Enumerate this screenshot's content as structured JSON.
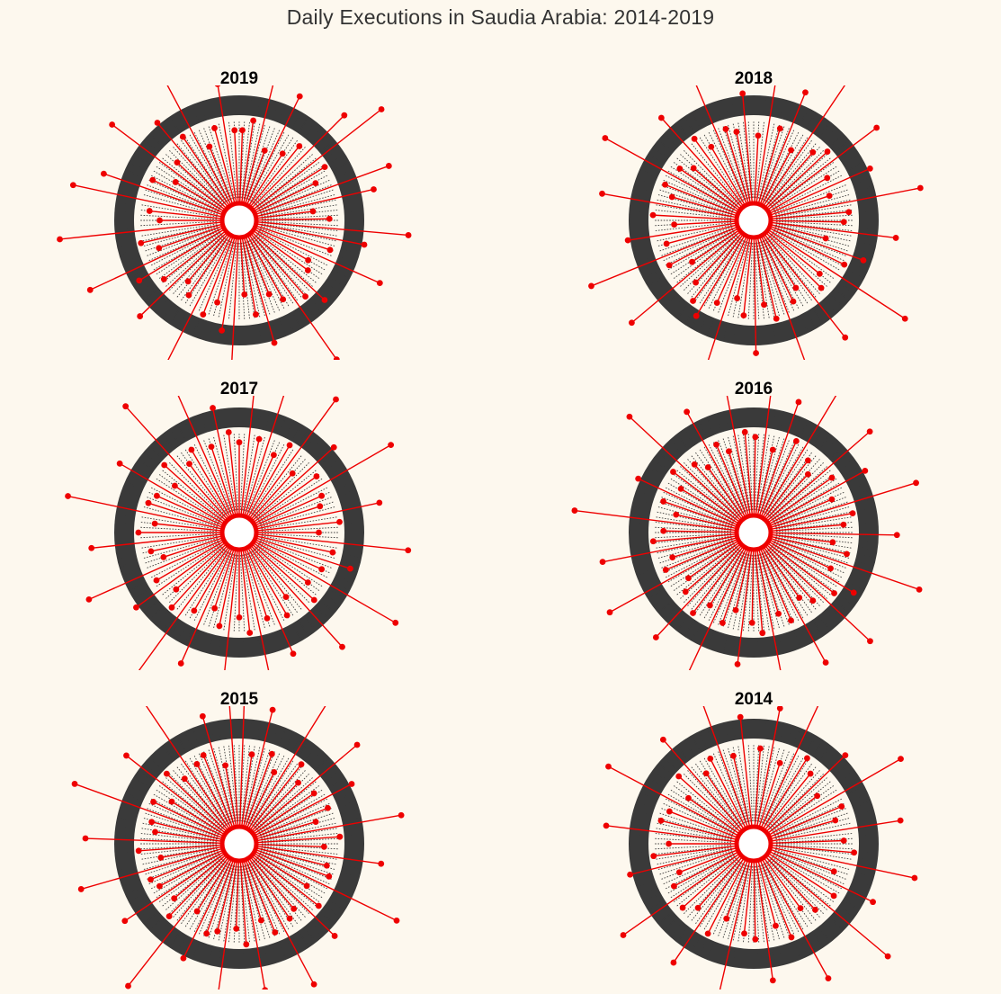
{
  "title": "Daily Executions in Saudia Arabia: 2014-2019",
  "colors": {
    "background": "#fdf8ee",
    "spike": "#ee0000",
    "ring": "#3a3a3a",
    "dots": "#222222"
  },
  "chart_data": [
    {
      "type": "radial-lollipop",
      "title": "2019",
      "angles_deg": [
        2,
        8,
        14,
        20,
        26,
        33,
        39,
        45,
        52,
        58,
        64,
        70,
        77,
        83,
        89,
        95,
        101,
        108,
        114,
        120,
        126,
        133,
        139,
        145,
        151,
        158,
        164,
        170,
        176,
        183,
        189,
        195,
        201,
        207,
        214,
        220,
        226,
        232,
        239,
        245,
        251,
        257,
        264,
        270,
        276,
        282,
        289,
        295,
        301,
        307,
        313,
        320,
        326,
        332,
        338,
        345,
        351,
        357
      ],
      "lengths": [
        0.85,
        0.95,
        1.6,
        0.7,
        1.3,
        0.75,
        0.9,
        1.4,
        1.7,
        0.95,
        0.8,
        1.5,
        1.3,
        0.7,
        0.85,
        1.6,
        1.2,
        0.9,
        1.45,
        0.75,
        0.8,
        1.1,
        0.95,
        1.6,
        0.85,
        0.75,
        1.2,
        0.9,
        0.7,
        1.55,
        1.05,
        0.8,
        0.95,
        1.7,
        0.85,
        0.75,
        1.3,
        0.9,
        1.1,
        1.55,
        0.8,
        0.95,
        1.7,
        0.75,
        0.85,
        1.6,
        1.35,
        0.9,
        0.7,
        1.5,
        0.8,
        1.2,
        0.95,
        1.65,
        0.75,
        0.9,
        1.3,
        0.85
      ]
    },
    {
      "type": "radial-lollipop",
      "title": "2018",
      "angles_deg": [
        3,
        9,
        16,
        22,
        28,
        34,
        41,
        47,
        53,
        60,
        66,
        72,
        79,
        85,
        91,
        97,
        104,
        110,
        116,
        123,
        129,
        135,
        142,
        148,
        154,
        160,
        167,
        173,
        179,
        186,
        192,
        198,
        204,
        211,
        217,
        223,
        230,
        236,
        242,
        248,
        255,
        261,
        267,
        273,
        280,
        286,
        292,
        299,
        305,
        311,
        318,
        324,
        330,
        337,
        343,
        349,
        355
      ],
      "lengths": [
        0.8,
        1.6,
        0.9,
        1.3,
        0.75,
        1.7,
        0.85,
        0.95,
        1.45,
        0.8,
        1.2,
        0.75,
        1.6,
        0.9,
        0.85,
        1.35,
        0.7,
        1.1,
        0.95,
        1.7,
        0.8,
        0.9,
        1.4,
        0.75,
        0.85,
        1.55,
        0.95,
        0.8,
        1.25,
        0.9,
        0.75,
        1.6,
        0.85,
        1.05,
        0.95,
        0.8,
        1.5,
        0.7,
        0.9,
        1.65,
        0.85,
        1.2,
        0.75,
        0.95,
        1.45,
        0.8,
        0.9,
        1.6,
        0.85,
        0.75,
        1.3,
        0.95,
        0.8,
        1.7,
        0.9,
        0.85,
        1.2
      ]
    },
    {
      "type": "radial-lollipop",
      "title": "2017",
      "angles_deg": [
        0,
        6,
        12,
        18,
        24,
        30,
        36,
        42,
        48,
        54,
        60,
        66,
        72,
        78,
        84,
        90,
        96,
        102,
        108,
        114,
        120,
        126,
        132,
        138,
        144,
        150,
        156,
        162,
        168,
        174,
        180,
        186,
        192,
        198,
        204,
        210,
        216,
        222,
        228,
        234,
        240,
        246,
        252,
        258,
        264,
        270,
        276,
        282,
        288,
        294,
        300,
        306,
        312,
        318,
        324,
        330,
        336,
        342,
        348,
        354
      ],
      "lengths": [
        0.85,
        1.4,
        0.9,
        1.7,
        0.8,
        0.95,
        1.55,
        0.75,
        1.2,
        0.9,
        1.65,
        0.85,
        0.8,
        1.35,
        0.95,
        0.75,
        1.6,
        0.9,
        1.1,
        0.85,
        1.7,
        0.8,
        0.95,
        1.45,
        0.75,
        0.9,
        1.25,
        0.85,
        1.6,
        0.95,
        0.8,
        1.5,
        0.9,
        0.75,
        1.35,
        0.85,
        1.7,
        0.95,
        0.8,
        1.2,
        0.9,
        1.55,
        0.75,
        0.85,
        1.4,
        0.95,
        0.8,
        1.65,
        0.9,
        0.85,
        1.3,
        0.75,
        0.95,
        1.6,
        0.8,
        0.9,
        1.45,
        0.85,
        1.2,
        0.95
      ]
    },
    {
      "type": "radial-lollipop",
      "title": "2016",
      "angles_deg": [
        1,
        7,
        13,
        19,
        25,
        31,
        37,
        43,
        49,
        55,
        61,
        67,
        73,
        79,
        85,
        91,
        97,
        103,
        109,
        115,
        121,
        127,
        133,
        139,
        145,
        151,
        157,
        163,
        169,
        175,
        181,
        187,
        193,
        199,
        205,
        211,
        217,
        223,
        229,
        235,
        241,
        247,
        253,
        259,
        265,
        271,
        277,
        283,
        289,
        295,
        301,
        307,
        313,
        319,
        325,
        331,
        337,
        343,
        349,
        355
      ],
      "lengths": [
        0.9,
        1.55,
        0.8,
        1.3,
        0.95,
        1.7,
        0.85,
        0.75,
        1.45,
        0.9,
        1.2,
        0.8,
        1.6,
        0.95,
        0.85,
        1.35,
        0.75,
        0.9,
        1.65,
        0.8,
        1.1,
        0.95,
        1.5,
        0.85,
        0.75,
        1.4,
        0.9,
        0.8,
        1.7,
        0.95,
        0.85,
        1.25,
        0.75,
        0.9,
        1.6,
        0.8,
        0.95,
        1.35,
        0.85,
        0.75,
        1.55,
        0.9,
        0.8,
        1.45,
        0.95,
        0.85,
        1.7,
        0.75,
        0.9,
        1.2,
        0.8,
        0.95,
        1.6,
        0.85,
        0.75,
        1.3,
        0.9,
        0.8,
        1.5,
        0.95
      ]
    },
    {
      "type": "radial-lollipop",
      "title": "2015",
      "angles_deg": [
        2,
        8,
        14,
        20,
        26,
        32,
        38,
        44,
        50,
        56,
        62,
        68,
        74,
        80,
        86,
        92,
        98,
        104,
        110,
        116,
        122,
        128,
        134,
        140,
        146,
        152,
        158,
        164,
        170,
        176,
        182,
        188,
        194,
        200,
        206,
        212,
        218,
        224,
        230,
        236,
        242,
        248,
        254,
        260,
        266,
        272,
        278,
        284,
        290,
        296,
        302,
        308,
        314,
        320,
        326,
        332,
        338,
        344,
        350,
        356
      ],
      "lengths": [
        1.6,
        0.85,
        1.3,
        0.9,
        0.75,
        1.7,
        0.95,
        0.8,
        1.45,
        0.85,
        1.2,
        0.9,
        0.75,
        1.55,
        0.95,
        0.8,
        1.35,
        0.85,
        0.9,
        1.65,
        0.75,
        0.95,
        1.25,
        0.8,
        0.85,
        1.5,
        0.9,
        0.75,
        1.4,
        0.95,
        0.8,
        1.6,
        0.85,
        0.9,
        1.2,
        0.75,
        1.7,
        0.95,
        0.8,
        1.3,
        0.85,
        0.9,
        1.55,
        0.75,
        0.95,
        1.45,
        0.8,
        0.85,
        1.65,
        0.9,
        0.75,
        1.35,
        0.95,
        0.8,
        1.6,
        0.85,
        0.9,
        1.25,
        0.75,
        1.5
      ]
    },
    {
      "type": "radial-lollipop",
      "title": "2014",
      "angles_deg": [
        4,
        11,
        18,
        25,
        32,
        39,
        46,
        53,
        60,
        67,
        74,
        81,
        88,
        95,
        102,
        109,
        116,
        123,
        130,
        137,
        144,
        151,
        158,
        165,
        172,
        179,
        186,
        193,
        200,
        207,
        214,
        221,
        228,
        235,
        242,
        249,
        256,
        263,
        270,
        277,
        284,
        291,
        298,
        305,
        312,
        319,
        326,
        333,
        340,
        347,
        354
      ],
      "lengths": [
        0.9,
        1.3,
        0.8,
        1.5,
        0.95,
        0.85,
        1.2,
        0.75,
        1.6,
        0.9,
        0.8,
        1.4,
        0.85,
        0.95,
        1.55,
        0.8,
        1.25,
        0.9,
        1.65,
        0.85,
        0.75,
        1.45,
        0.95,
        0.8,
        1.3,
        0.9,
        0.85,
        1.6,
        0.75,
        0.95,
        1.35,
        0.8,
        0.9,
        1.5,
        0.85,
        0.75,
        1.2,
        0.95,
        0.8,
        1.4,
        0.9,
        0.85,
        1.55,
        0.75,
        0.95,
        1.3,
        0.8,
        0.9,
        1.45,
        0.85,
        1.2
      ]
    }
  ]
}
